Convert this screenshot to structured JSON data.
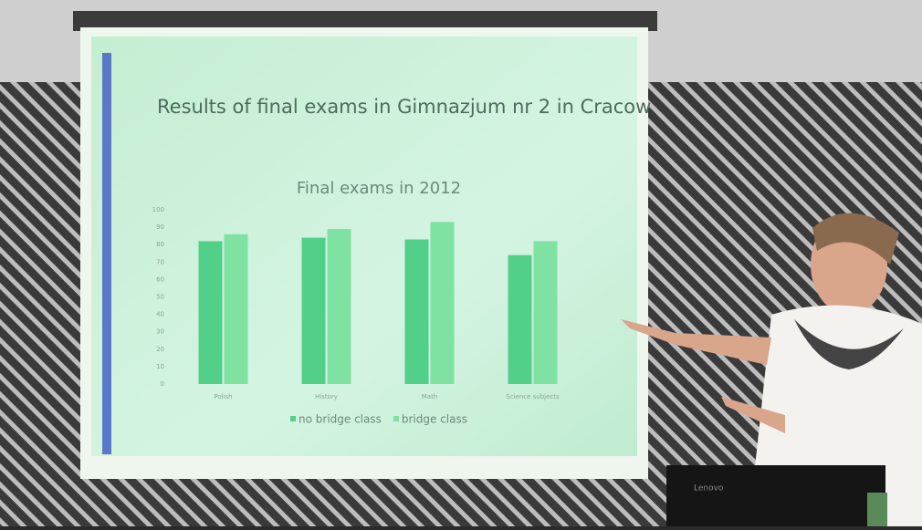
{
  "chart_data": {
    "type": "bar",
    "slide_title": "Results of final exams in Gimnazjum nr 2 in Cracow",
    "title": "Final exams in 2012",
    "categories": [
      "Polish",
      "History",
      "Math",
      "Science subjects"
    ],
    "series": [
      {
        "name": "no bridge class",
        "color": "#52cf88",
        "values": [
          82,
          84,
          83,
          74
        ]
      },
      {
        "name": "bridge class",
        "color": "#80e2a2",
        "values": [
          86,
          89,
          93,
          82
        ]
      }
    ],
    "ylim": [
      0,
      100
    ],
    "yticks": [
      0,
      10,
      20,
      30,
      40,
      50,
      60,
      70,
      80,
      90,
      100
    ],
    "grid": false,
    "legend": "bottom"
  },
  "scene": {
    "laptop_brand": "Lenovo"
  }
}
